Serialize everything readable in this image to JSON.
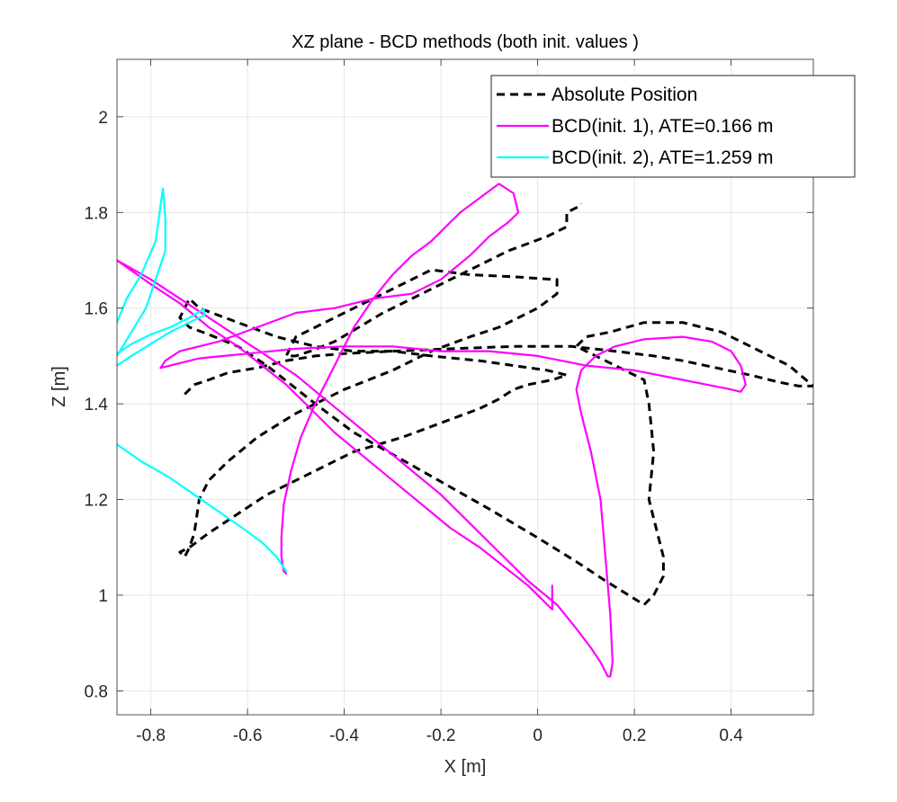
{
  "chart_data": {
    "type": "line",
    "title": "XZ plane - BCD methods (both init. values )",
    "xlabel": "X [m]",
    "ylabel": "Z [m]",
    "xlim": [
      -0.87,
      0.57
    ],
    "ylim": [
      0.75,
      2.12
    ],
    "grid": true,
    "legend_position": "top-right",
    "xticks": [
      -0.8,
      -0.6,
      -0.4,
      -0.2,
      0,
      0.2,
      0.4
    ],
    "xtick_labels": [
      "-0.8",
      "-0.6",
      "-0.4",
      "-0.2",
      "0",
      "0.2",
      "0.4"
    ],
    "yticks": [
      0.8,
      1.0,
      1.2,
      1.4,
      1.6,
      1.8,
      2.0
    ],
    "ytick_labels": [
      "0.8",
      "1",
      "1.2",
      "1.4",
      "1.6",
      "1.8",
      "2"
    ],
    "series": [
      {
        "name": "Absolute Position",
        "color": "#000000",
        "style": "dashed",
        "x": [
          -0.73,
          -0.71,
          -0.68,
          -0.64,
          -0.58,
          -0.52,
          -0.46,
          -0.4,
          -0.3,
          -0.18,
          -0.05,
          0.07,
          0.16,
          0.24,
          0.3,
          0.37,
          0.44,
          0.5,
          0.54,
          0.55,
          0.57,
          0.52,
          0.46,
          0.38,
          0.3,
          0.22,
          0.15,
          0.1,
          0.08,
          0.1,
          0.14,
          0.22,
          0.23,
          0.24,
          0.23,
          0.24,
          0.25,
          0.26,
          0.26,
          0.24,
          0.22,
          0.14,
          0.08,
          0.0,
          -0.1,
          -0.24,
          -0.38,
          -0.46,
          -0.51,
          -0.56,
          -0.62,
          -0.68,
          -0.72,
          -0.74,
          -0.73,
          -0.72,
          -0.7,
          -0.62,
          -0.54,
          -0.46,
          -0.38,
          -0.3,
          -0.22,
          -0.12,
          -0.05,
          0.02,
          0.06,
          0.03,
          -0.02,
          -0.05,
          -0.08,
          -0.12,
          -0.2,
          -0.28,
          -0.38,
          -0.44,
          -0.5,
          -0.56,
          -0.62,
          -0.68,
          -0.72,
          -0.74,
          -0.73,
          -0.72,
          -0.71,
          -0.7,
          -0.68,
          -0.64,
          -0.58,
          -0.5,
          -0.4,
          -0.3,
          -0.22,
          -0.14,
          -0.08,
          0.0,
          0.04,
          0.04,
          0.03,
          -0.04,
          -0.14,
          -0.22,
          -0.3,
          -0.38,
          -0.46,
          -0.5,
          -0.51,
          -0.52,
          -0.5,
          -0.47,
          -0.42,
          -0.37,
          -0.32,
          -0.26,
          -0.2,
          -0.12,
          -0.06,
          0.02,
          0.06,
          0.06,
          0.09,
          0.09
        ],
        "y": [
          1.42,
          1.44,
          1.45,
          1.465,
          1.475,
          1.49,
          1.5,
          1.505,
          1.51,
          1.515,
          1.52,
          1.52,
          1.51,
          1.5,
          1.49,
          1.475,
          1.46,
          1.445,
          1.437,
          1.437,
          1.437,
          1.48,
          1.51,
          1.55,
          1.57,
          1.57,
          1.55,
          1.54,
          1.52,
          1.51,
          1.49,
          1.45,
          1.4,
          1.3,
          1.2,
          1.16,
          1.12,
          1.08,
          1.04,
          1.0,
          0.98,
          1.03,
          1.07,
          1.12,
          1.18,
          1.26,
          1.34,
          1.4,
          1.44,
          1.48,
          1.52,
          1.545,
          1.56,
          1.58,
          1.6,
          1.62,
          1.6,
          1.57,
          1.54,
          1.52,
          1.51,
          1.51,
          1.5,
          1.49,
          1.48,
          1.47,
          1.46,
          1.45,
          1.44,
          1.43,
          1.41,
          1.39,
          1.36,
          1.33,
          1.3,
          1.27,
          1.24,
          1.21,
          1.17,
          1.13,
          1.1,
          1.09,
          1.08,
          1.1,
          1.13,
          1.2,
          1.24,
          1.28,
          1.33,
          1.38,
          1.43,
          1.47,
          1.51,
          1.54,
          1.56,
          1.6,
          1.63,
          1.66,
          1.66,
          1.665,
          1.67,
          1.68,
          1.64,
          1.6,
          1.56,
          1.54,
          1.52,
          1.5,
          1.5,
          1.51,
          1.53,
          1.56,
          1.59,
          1.62,
          1.65,
          1.69,
          1.72,
          1.75,
          1.77,
          1.8,
          1.815,
          1.818
        ]
      },
      {
        "name": "BCD(init. 1), ATE=0.166 m",
        "color": "#ff00ff",
        "style": "solid",
        "x": [
          0.03,
          0.03,
          0.02,
          -0.02,
          -0.07,
          -0.12,
          -0.18,
          -0.24,
          -0.3,
          -0.36,
          -0.42,
          -0.47,
          -0.52,
          -0.57,
          -0.62,
          -0.68,
          -0.74,
          -0.8,
          -0.87,
          -0.8,
          -0.74,
          -0.68,
          -0.62,
          -0.56,
          -0.5,
          -0.44,
          -0.38,
          -0.32,
          -0.26,
          -0.2,
          -0.14,
          -0.08,
          -0.02,
          0.04,
          0.08,
          0.11,
          0.13,
          0.145,
          0.15,
          0.155,
          0.15,
          0.14,
          0.13,
          0.11,
          0.09,
          0.08,
          0.09,
          0.12,
          0.16,
          0.22,
          0.3,
          0.36,
          0.4,
          0.42,
          0.43,
          0.42,
          0.4,
          0.3,
          0.2,
          0.1,
          0.0,
          -0.1,
          -0.2,
          -0.3,
          -0.4,
          -0.5,
          -0.6,
          -0.7,
          -0.76,
          -0.78,
          -0.77,
          -0.74,
          -0.66,
          -0.58,
          -0.5,
          -0.42,
          -0.34,
          -0.26,
          -0.2,
          -0.14,
          -0.1,
          -0.06,
          -0.04,
          -0.05,
          -0.08,
          -0.12,
          -0.16,
          -0.19,
          -0.22,
          -0.26,
          -0.3,
          -0.34,
          -0.38,
          -0.42,
          -0.46,
          -0.49,
          -0.51,
          -0.525,
          -0.53,
          -0.53,
          -0.525,
          -0.52
        ],
        "y": [
          1.02,
          0.97,
          0.98,
          1.02,
          1.06,
          1.1,
          1.14,
          1.19,
          1.24,
          1.29,
          1.34,
          1.39,
          1.44,
          1.48,
          1.52,
          1.56,
          1.61,
          1.65,
          1.7,
          1.66,
          1.62,
          1.58,
          1.54,
          1.5,
          1.46,
          1.41,
          1.36,
          1.31,
          1.26,
          1.21,
          1.15,
          1.09,
          1.03,
          0.98,
          0.93,
          0.89,
          0.86,
          0.83,
          0.83,
          0.86,
          0.96,
          1.08,
          1.2,
          1.3,
          1.38,
          1.43,
          1.47,
          1.5,
          1.52,
          1.535,
          1.54,
          1.53,
          1.51,
          1.48,
          1.44,
          1.425,
          1.43,
          1.45,
          1.47,
          1.48,
          1.5,
          1.51,
          1.51,
          1.52,
          1.52,
          1.515,
          1.505,
          1.495,
          1.48,
          1.475,
          1.49,
          1.51,
          1.53,
          1.56,
          1.59,
          1.6,
          1.62,
          1.63,
          1.66,
          1.71,
          1.75,
          1.78,
          1.8,
          1.84,
          1.86,
          1.83,
          1.8,
          1.77,
          1.74,
          1.71,
          1.67,
          1.62,
          1.56,
          1.48,
          1.4,
          1.33,
          1.26,
          1.19,
          1.12,
          1.08,
          1.05,
          1.045
        ]
      },
      {
        "name": "BCD(init. 2), ATE=1.259 m",
        "color": "#00ffff",
        "style": "solid",
        "x": [
          -0.52,
          -0.54,
          -0.57,
          -0.61,
          -0.66,
          -0.71,
          -0.76,
          -0.82,
          -0.87,
          null,
          -0.87,
          -0.84,
          -0.8,
          -0.76,
          -0.72,
          -0.69,
          -0.69,
          -0.72,
          -0.76,
          -0.8,
          -0.84,
          -0.87,
          null,
          -0.87,
          -0.84,
          -0.81,
          -0.79,
          -0.77,
          -0.77,
          -0.775,
          -0.79,
          -0.82,
          -0.85,
          -0.87
        ],
        "y": [
          1.05,
          1.08,
          1.11,
          1.14,
          1.175,
          1.21,
          1.245,
          1.28,
          1.315,
          null,
          1.48,
          1.5,
          1.525,
          1.55,
          1.57,
          1.585,
          1.598,
          1.58,
          1.56,
          1.545,
          1.525,
          1.505,
          null,
          1.5,
          1.55,
          1.6,
          1.66,
          1.72,
          1.785,
          1.85,
          1.74,
          1.67,
          1.62,
          1.57
        ]
      }
    ]
  }
}
